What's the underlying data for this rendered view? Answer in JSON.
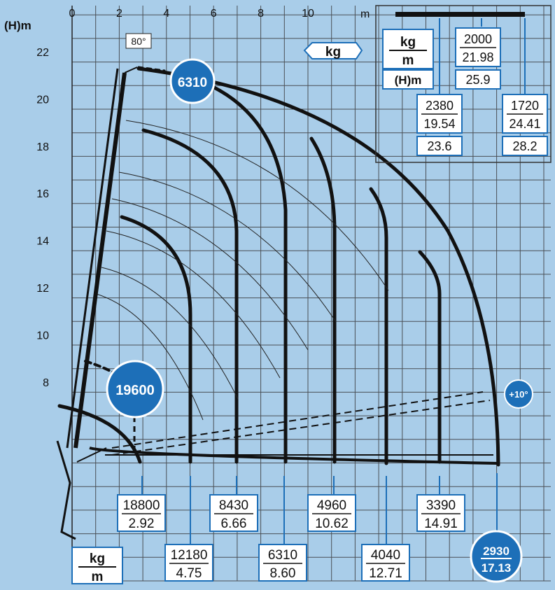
{
  "axes": {
    "y_title": "(H)m",
    "x_unit": "m",
    "x_ticks": [
      "0",
      "2",
      "4",
      "6",
      "8",
      "10"
    ],
    "y_ticks": [
      "22",
      "20",
      "18",
      "16",
      "14",
      "12",
      "10",
      "8"
    ]
  },
  "chart_data": {
    "type": "crane-load-diagram",
    "boom_angle_max_label": "80°",
    "unit_tag": "kg",
    "jib_angle_label": "+10°",
    "legend_box": {
      "kg_label": "kg",
      "m_label": "m",
      "height_label": "(H)m"
    },
    "bottom_legend": {
      "kg_label": "kg",
      "m_label": "m"
    },
    "circled_loads": {
      "tip": "6310",
      "main": "19600",
      "end_kg": "2930",
      "end_m": "17.13"
    },
    "top_loads": [
      {
        "kg": "2380",
        "m": "19.54",
        "h": "23.6"
      },
      {
        "kg": "2000",
        "m": "21.98",
        "h": "25.9"
      },
      {
        "kg": "1720",
        "m": "24.41",
        "h": "28.2"
      }
    ],
    "bottom_loads": [
      {
        "kg": "18800",
        "m": "2.92"
      },
      {
        "kg": "12180",
        "m": "4.75"
      },
      {
        "kg": "8430",
        "m": "6.66"
      },
      {
        "kg": "6310",
        "m": "8.60"
      },
      {
        "kg": "4960",
        "m": "10.62"
      },
      {
        "kg": "4040",
        "m": "12.71"
      },
      {
        "kg": "3390",
        "m": "14.91"
      }
    ],
    "colors": {
      "background": "#a9cde9",
      "accent": "#1d6fb8",
      "curve": "#111111",
      "grid": "#4a4f55"
    }
  }
}
